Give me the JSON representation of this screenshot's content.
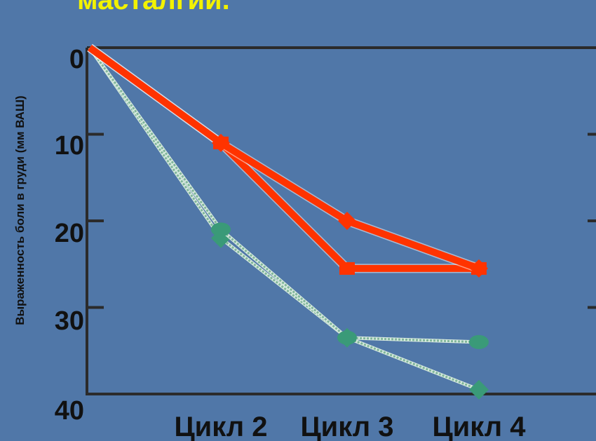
{
  "slide": {
    "title": "масталгии."
  },
  "chart_data": {
    "type": "line",
    "title": "",
    "xlabel": "",
    "ylabel": "Выраженность боли в груди (мм ВАШ)",
    "categories": [
      "",
      "Цикл 2",
      "Цикл 3",
      "Цикл 4"
    ],
    "ylim": [
      0,
      40
    ],
    "y_inverted": true,
    "y_ticks": [
      "0",
      "10",
      "20",
      "30",
      "40"
    ],
    "series": [
      {
        "color": "#ff3300",
        "marker": "diamond",
        "values": [
          0,
          11,
          20,
          25.5
        ]
      },
      {
        "color": "#ff3300",
        "marker": "square",
        "values": [
          0,
          11,
          25.5,
          25.5
        ]
      },
      {
        "color": "#3a9a78",
        "marker": "circle",
        "values": [
          0,
          21,
          33.5,
          34
        ]
      },
      {
        "color": "#3a9a78",
        "marker": "diamond",
        "values": [
          0,
          22,
          33.5,
          39.5
        ]
      }
    ]
  }
}
